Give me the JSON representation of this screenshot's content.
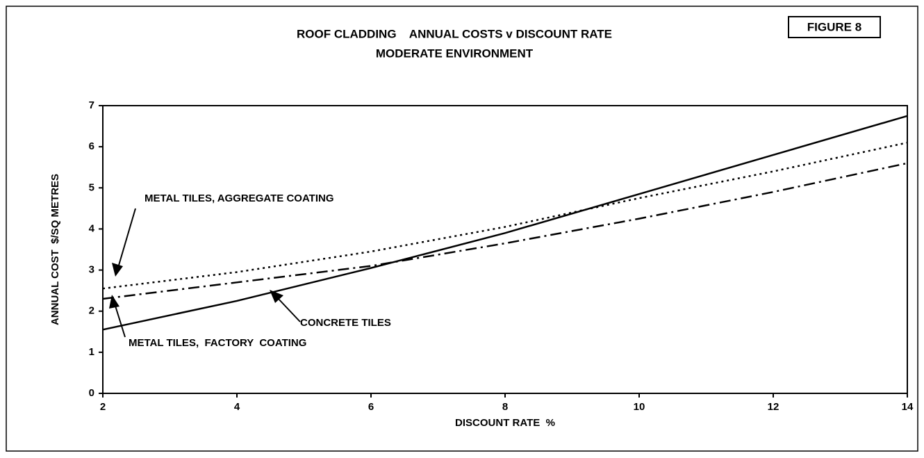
{
  "chart_data": {
    "type": "line",
    "title": "ROOF CLADDING    ANNUAL COSTS v DISCOUNT RATE",
    "subtitle": "MODERATE ENVIRONMENT",
    "figure_label": "FIGURE 8",
    "x_label": "DISCOUNT RATE  %",
    "y_label": "ANNUAL COST  $/SQ METRES",
    "x": [
      2,
      4,
      6,
      8,
      10,
      12,
      14
    ],
    "series": [
      {
        "name": "METAL TILES, AGGREGATE COATING",
        "color": "#000000",
        "dash": "dotted",
        "values": [
          2.55,
          2.95,
          3.45,
          4.05,
          4.75,
          5.4,
          6.1
        ]
      },
      {
        "name": "CONCRETE TILES",
        "color": "#000000",
        "dash": "solid",
        "values": [
          1.55,
          2.25,
          3.05,
          3.9,
          4.85,
          5.8,
          6.75
        ]
      },
      {
        "name": "METAL TILES,  FACTORY  COATING",
        "color": "#000000",
        "dash": "dashdot",
        "values": [
          2.3,
          2.7,
          3.1,
          3.65,
          4.25,
          4.9,
          5.6
        ]
      }
    ],
    "xlim": [
      2,
      14
    ],
    "xticks": [
      2,
      4,
      6,
      8,
      10,
      12,
      14
    ],
    "ylim": [
      0,
      7
    ],
    "yticks": [
      0,
      1,
      2,
      3,
      4,
      5,
      6,
      7
    ],
    "grid": false
  }
}
